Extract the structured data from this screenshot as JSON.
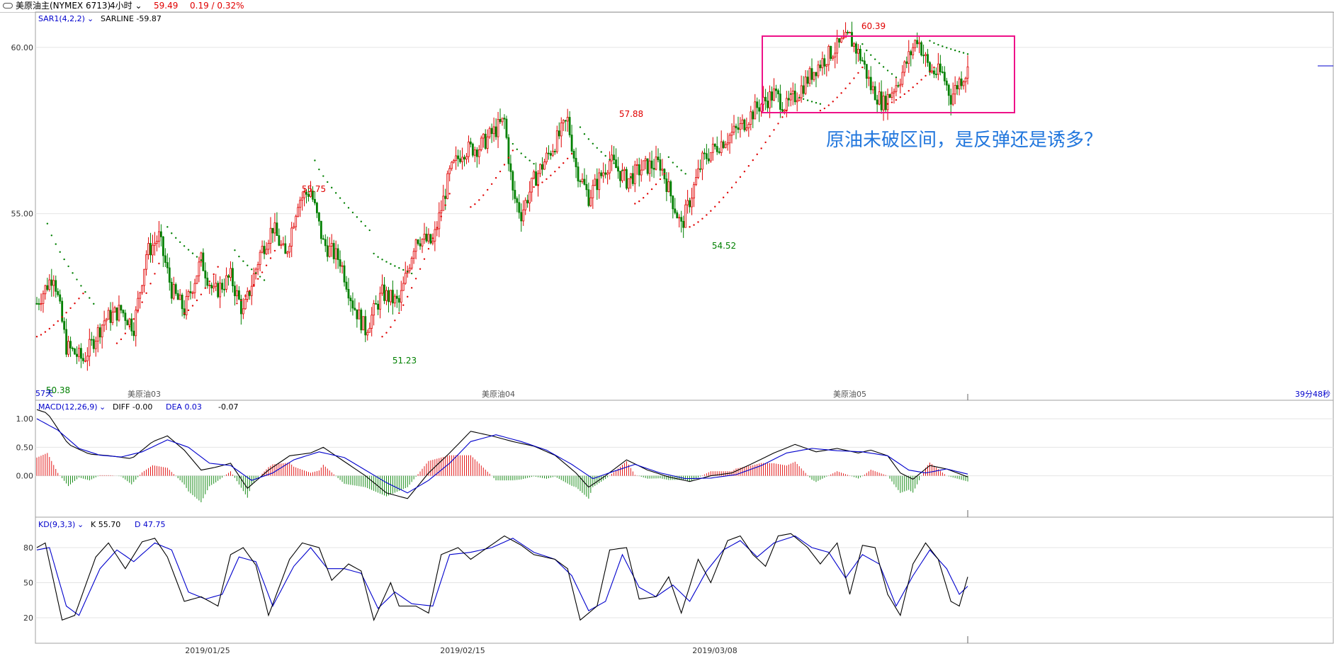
{
  "header": {
    "instrument": "美原油主(NYMEX 6713)",
    "period": "4小时",
    "last_price": "59.49",
    "change": "0.19 / 0.32%"
  },
  "colors": {
    "up": "#e00000",
    "down": "#008000",
    "accent": "#0000cc",
    "box": "#ee1188",
    "annotation": "#2277dd"
  },
  "chart_data": [
    {
      "type": "candlestick",
      "indicator_label": "SAR1(4,2,2)",
      "indicator_value": "SARLINE -59.87",
      "y_ticks": [
        "60.00",
        "55.00"
      ],
      "ylim": [
        49.6,
        61.0
      ],
      "extremes": [
        {
          "label": "60.39",
          "kind": "high"
        },
        {
          "label": "57.88",
          "kind": "high"
        },
        {
          "label": "55.75",
          "kind": "high"
        },
        {
          "label": "54.52",
          "kind": "low"
        },
        {
          "label": "51.23",
          "kind": "low"
        },
        {
          "label": "50.38",
          "kind": "low"
        }
      ],
      "price_path": [
        [
          0,
          52.3
        ],
        [
          8,
          53.2
        ],
        [
          14,
          51.0
        ],
        [
          22,
          50.6
        ],
        [
          32,
          51.8
        ],
        [
          40,
          52.1
        ],
        [
          46,
          51.6
        ],
        [
          52,
          53.8
        ],
        [
          58,
          54.3
        ],
        [
          64,
          52.7
        ],
        [
          70,
          52.1
        ],
        [
          78,
          53.6
        ],
        [
          84,
          52.6
        ],
        [
          92,
          53.1
        ],
        [
          98,
          52.0
        ],
        [
          106,
          53.8
        ],
        [
          112,
          54.6
        ],
        [
          118,
          53.7
        ],
        [
          124,
          55.4
        ],
        [
          130,
          55.7
        ],
        [
          136,
          54.1
        ],
        [
          144,
          53.6
        ],
        [
          150,
          52.3
        ],
        [
          156,
          51.5
        ],
        [
          164,
          52.6
        ],
        [
          172,
          52.3
        ],
        [
          180,
          54.3
        ],
        [
          188,
          54.1
        ],
        [
          196,
          56.2
        ],
        [
          202,
          56.9
        ],
        [
          210,
          57.0
        ],
        [
          216,
          57.4
        ],
        [
          222,
          57.8
        ],
        [
          226,
          55.6
        ],
        [
          230,
          55.0
        ],
        [
          236,
          56.0
        ],
        [
          244,
          56.9
        ],
        [
          252,
          57.8
        ],
        [
          256,
          56.4
        ],
        [
          262,
          55.5
        ],
        [
          272,
          56.6
        ],
        [
          280,
          56.0
        ],
        [
          288,
          56.4
        ],
        [
          296,
          56.5
        ],
        [
          306,
          54.6
        ],
        [
          316,
          56.6
        ],
        [
          324,
          57.1
        ],
        [
          334,
          57.6
        ],
        [
          342,
          58.2
        ],
        [
          350,
          58.6
        ],
        [
          356,
          58.2
        ],
        [
          362,
          58.7
        ],
        [
          370,
          59.4
        ],
        [
          378,
          59.9
        ],
        [
          386,
          60.3
        ],
        [
          392,
          59.6
        ],
        [
          396,
          58.8
        ],
        [
          402,
          58.3
        ],
        [
          410,
          59.1
        ],
        [
          418,
          60.3
        ],
        [
          424,
          59.3
        ],
        [
          430,
          59.2
        ],
        [
          434,
          58.5
        ],
        [
          438,
          59.0
        ],
        [
          442,
          59.3
        ]
      ],
      "sar_segments": [
        {
          "side": "down",
          "from": [
            5,
            54.7
          ],
          "to": [
            28,
            52.2
          ]
        },
        {
          "side": "up",
          "from": [
            0,
            51.3
          ],
          "to": [
            22,
            52.6
          ]
        },
        {
          "side": "up",
          "from": [
            38,
            51.1
          ],
          "to": [
            58,
            53.5
          ]
        },
        {
          "side": "down",
          "from": [
            62,
            54.6
          ],
          "to": [
            78,
            53.6
          ]
        },
        {
          "side": "up",
          "from": [
            70,
            52.0
          ],
          "to": [
            86,
            53.4
          ]
        },
        {
          "side": "down",
          "from": [
            94,
            53.9
          ],
          "to": [
            108,
            53.0
          ]
        },
        {
          "side": "up",
          "from": [
            95,
            52.3
          ],
          "to": [
            114,
            54.0
          ]
        },
        {
          "side": "down",
          "from": [
            132,
            56.6
          ],
          "to": [
            158,
            54.5
          ]
        },
        {
          "side": "down",
          "from": [
            160,
            53.8
          ],
          "to": [
            178,
            53.2
          ]
        },
        {
          "side": "up",
          "from": [
            164,
            51.3
          ],
          "to": [
            196,
            55.6
          ]
        },
        {
          "side": "up",
          "from": [
            206,
            55.2
          ],
          "to": [
            226,
            56.9
          ]
        },
        {
          "side": "down",
          "from": [
            226,
            57.1
          ],
          "to": [
            236,
            56.5
          ]
        },
        {
          "side": "up",
          "from": [
            236,
            55.8
          ],
          "to": [
            254,
            56.8
          ]
        },
        {
          "side": "down",
          "from": [
            258,
            57.6
          ],
          "to": [
            282,
            56.1
          ]
        },
        {
          "side": "up",
          "from": [
            284,
            55.3
          ],
          "to": [
            298,
            56.2
          ]
        },
        {
          "side": "down",
          "from": [
            300,
            56.7
          ],
          "to": [
            308,
            56.2
          ]
        },
        {
          "side": "up",
          "from": [
            310,
            54.6
          ],
          "to": [
            356,
            58.1
          ]
        },
        {
          "side": "down",
          "from": [
            358,
            58.6
          ],
          "to": [
            372,
            58.3
          ]
        },
        {
          "side": "up",
          "from": [
            372,
            58.1
          ],
          "to": [
            392,
            59.4
          ]
        },
        {
          "side": "down",
          "from": [
            392,
            60.1
          ],
          "to": [
            408,
            59.1
          ]
        },
        {
          "side": "up",
          "from": [
            404,
            58.3
          ],
          "to": [
            426,
            59.4
          ]
        },
        {
          "side": "down",
          "from": [
            424,
            60.2
          ],
          "to": [
            442,
            59.8
          ]
        }
      ],
      "x_contract_labels": [
        "57天",
        "美原油03",
        "美原油04",
        "美原油05"
      ],
      "countdown": "39分48秒",
      "annotation": "原油未破区间，是反弹还是诱多？"
    },
    {
      "type": "macd",
      "indicator_label": "MACD(12,26,9)",
      "diff_label": "DIFF -0.00",
      "dea_label": "DEA 0.03",
      "macd_value": "-0.07",
      "y_ticks": [
        "1.00",
        "0.50",
        "0.00"
      ],
      "ylim": [
        -0.7,
        1.2
      ],
      "diff_path": [
        [
          0,
          1.16
        ],
        [
          5,
          1.1
        ],
        [
          15,
          0.55
        ],
        [
          25,
          0.38
        ],
        [
          35,
          0.35
        ],
        [
          45,
          0.3
        ],
        [
          55,
          0.6
        ],
        [
          62,
          0.7
        ],
        [
          70,
          0.45
        ],
        [
          78,
          0.1
        ],
        [
          85,
          0.15
        ],
        [
          92,
          0.22
        ],
        [
          100,
          -0.22
        ],
        [
          110,
          0.1
        ],
        [
          120,
          0.35
        ],
        [
          130,
          0.4
        ],
        [
          136,
          0.5
        ],
        [
          146,
          0.25
        ],
        [
          156,
          0.0
        ],
        [
          166,
          -0.3
        ],
        [
          176,
          -0.4
        ],
        [
          186,
          0.05
        ],
        [
          196,
          0.4
        ],
        [
          206,
          0.78
        ],
        [
          216,
          0.7
        ],
        [
          226,
          0.6
        ],
        [
          236,
          0.52
        ],
        [
          246,
          0.36
        ],
        [
          256,
          0.05
        ],
        [
          262,
          -0.2
        ],
        [
          270,
          0.0
        ],
        [
          280,
          0.28
        ],
        [
          290,
          0.1
        ],
        [
          300,
          -0.02
        ],
        [
          310,
          -0.1
        ],
        [
          320,
          0.0
        ],
        [
          330,
          0.05
        ],
        [
          340,
          0.22
        ],
        [
          350,
          0.4
        ],
        [
          360,
          0.55
        ],
        [
          370,
          0.42
        ],
        [
          380,
          0.48
        ],
        [
          390,
          0.4
        ],
        [
          396,
          0.45
        ],
        [
          404,
          0.35
        ],
        [
          410,
          0.05
        ],
        [
          416,
          -0.06
        ],
        [
          424,
          0.18
        ],
        [
          432,
          0.12
        ],
        [
          442,
          -0.02
        ]
      ],
      "dea_path": [
        [
          0,
          1.0
        ],
        [
          10,
          0.8
        ],
        [
          20,
          0.48
        ],
        [
          30,
          0.36
        ],
        [
          40,
          0.33
        ],
        [
          50,
          0.42
        ],
        [
          62,
          0.63
        ],
        [
          72,
          0.5
        ],
        [
          82,
          0.22
        ],
        [
          92,
          0.18
        ],
        [
          102,
          -0.08
        ],
        [
          112,
          0.05
        ],
        [
          122,
          0.28
        ],
        [
          134,
          0.42
        ],
        [
          146,
          0.32
        ],
        [
          156,
          0.1
        ],
        [
          166,
          -0.12
        ],
        [
          176,
          -0.3
        ],
        [
          186,
          -0.08
        ],
        [
          196,
          0.22
        ],
        [
          206,
          0.6
        ],
        [
          218,
          0.72
        ],
        [
          230,
          0.6
        ],
        [
          242,
          0.45
        ],
        [
          254,
          0.2
        ],
        [
          264,
          -0.05
        ],
        [
          274,
          0.08
        ],
        [
          284,
          0.2
        ],
        [
          296,
          0.05
        ],
        [
          308,
          -0.05
        ],
        [
          320,
          -0.04
        ],
        [
          332,
          0.02
        ],
        [
          344,
          0.18
        ],
        [
          356,
          0.4
        ],
        [
          368,
          0.48
        ],
        [
          380,
          0.44
        ],
        [
          392,
          0.42
        ],
        [
          404,
          0.35
        ],
        [
          414,
          0.1
        ],
        [
          422,
          0.05
        ],
        [
          432,
          0.12
        ],
        [
          442,
          0.03
        ]
      ]
    },
    {
      "type": "kd",
      "indicator_label": "KD(9,3,3)",
      "k_label": "K 55.70",
      "d_label": "D 47.75",
      "y_ticks": [
        "80",
        "50",
        "20"
      ],
      "ylim": [
        0,
        100
      ],
      "k_path": [
        [
          0,
          80
        ],
        [
          4,
          84
        ],
        [
          12,
          18
        ],
        [
          18,
          22
        ],
        [
          28,
          72
        ],
        [
          34,
          84
        ],
        [
          42,
          62
        ],
        [
          50,
          85
        ],
        [
          56,
          88
        ],
        [
          62,
          72
        ],
        [
          70,
          34
        ],
        [
          78,
          38
        ],
        [
          86,
          30
        ],
        [
          92,
          74
        ],
        [
          98,
          80
        ],
        [
          104,
          65
        ],
        [
          110,
          22
        ],
        [
          120,
          70
        ],
        [
          126,
          84
        ],
        [
          134,
          80
        ],
        [
          140,
          52
        ],
        [
          148,
          66
        ],
        [
          154,
          60
        ],
        [
          160,
          18
        ],
        [
          168,
          50
        ],
        [
          172,
          30
        ],
        [
          180,
          30
        ],
        [
          186,
          24
        ],
        [
          192,
          74
        ],
        [
          200,
          80
        ],
        [
          206,
          70
        ],
        [
          214,
          80
        ],
        [
          222,
          90
        ],
        [
          230,
          82
        ],
        [
          236,
          74
        ],
        [
          246,
          70
        ],
        [
          252,
          62
        ],
        [
          258,
          18
        ],
        [
          266,
          30
        ],
        [
          272,
          78
        ],
        [
          280,
          80
        ],
        [
          286,
          36
        ],
        [
          294,
          38
        ],
        [
          300,
          55
        ],
        [
          306,
          24
        ],
        [
          314,
          70
        ],
        [
          320,
          50
        ],
        [
          328,
          86
        ],
        [
          334,
          90
        ],
        [
          340,
          74
        ],
        [
          346,
          64
        ],
        [
          352,
          90
        ],
        [
          358,
          92
        ],
        [
          366,
          80
        ],
        [
          372,
          66
        ],
        [
          380,
          84
        ],
        [
          386,
          40
        ],
        [
          392,
          82
        ],
        [
          398,
          80
        ],
        [
          404,
          40
        ],
        [
          410,
          22
        ],
        [
          416,
          66
        ],
        [
          422,
          84
        ],
        [
          428,
          70
        ],
        [
          434,
          34
        ],
        [
          438,
          30
        ],
        [
          442,
          55
        ]
      ],
      "d_path": [
        [
          0,
          78
        ],
        [
          6,
          80
        ],
        [
          14,
          30
        ],
        [
          20,
          22
        ],
        [
          30,
          62
        ],
        [
          38,
          78
        ],
        [
          46,
          68
        ],
        [
          56,
          84
        ],
        [
          64,
          78
        ],
        [
          72,
          42
        ],
        [
          80,
          36
        ],
        [
          88,
          40
        ],
        [
          96,
          72
        ],
        [
          104,
          68
        ],
        [
          112,
          30
        ],
        [
          122,
          64
        ],
        [
          130,
          80
        ],
        [
          138,
          62
        ],
        [
          146,
          62
        ],
        [
          154,
          58
        ],
        [
          162,
          28
        ],
        [
          170,
          42
        ],
        [
          178,
          32
        ],
        [
          188,
          30
        ],
        [
          196,
          74
        ],
        [
          206,
          76
        ],
        [
          216,
          80
        ],
        [
          226,
          88
        ],
        [
          236,
          76
        ],
        [
          246,
          70
        ],
        [
          254,
          56
        ],
        [
          262,
          26
        ],
        [
          270,
          34
        ],
        [
          278,
          74
        ],
        [
          286,
          46
        ],
        [
          294,
          38
        ],
        [
          302,
          48
        ],
        [
          310,
          34
        ],
        [
          318,
          60
        ],
        [
          326,
          78
        ],
        [
          334,
          86
        ],
        [
          342,
          72
        ],
        [
          350,
          84
        ],
        [
          360,
          90
        ],
        [
          368,
          80
        ],
        [
          376,
          76
        ],
        [
          384,
          54
        ],
        [
          392,
          74
        ],
        [
          400,
          66
        ],
        [
          408,
          30
        ],
        [
          416,
          56
        ],
        [
          424,
          78
        ],
        [
          432,
          62
        ],
        [
          438,
          40
        ],
        [
          442,
          47
        ]
      ]
    },
    {
      "type": "time-axis",
      "x_tick_labels": [
        "2019/01/25",
        "2019/02/15",
        "2019/03/08"
      ]
    }
  ]
}
